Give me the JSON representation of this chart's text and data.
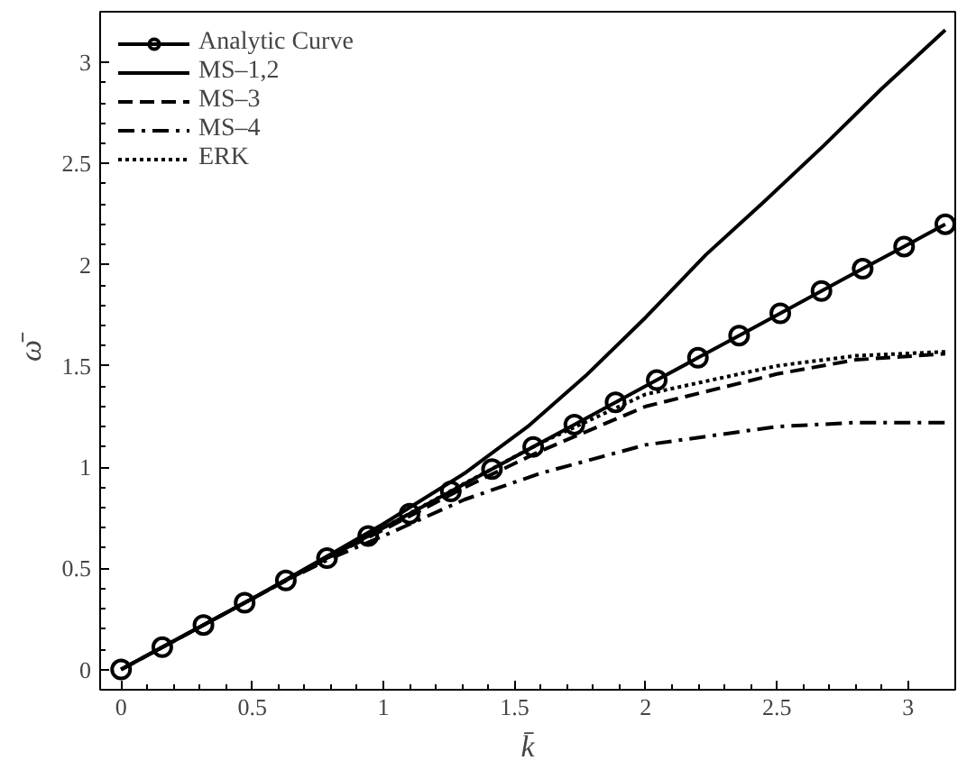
{
  "chart_data": {
    "type": "line",
    "xlabel": "k̄",
    "ylabel": "ω̄",
    "xlim": [
      -0.08,
      3.18
    ],
    "ylim": [
      -0.1,
      3.25
    ],
    "xticks": [
      0,
      0.5,
      1,
      1.5,
      2,
      2.5,
      3
    ],
    "yticks": [
      0,
      0.5,
      1,
      1.5,
      2,
      2.5,
      3
    ],
    "grid": false,
    "legend": "top left",
    "series": [
      {
        "name": "Analytic Curve",
        "color": "#000000",
        "marker": "circle",
        "line_style": "solid",
        "x": [
          0,
          0.157,
          0.314,
          0.471,
          0.628,
          0.785,
          0.942,
          1.1,
          1.257,
          1.414,
          1.571,
          1.728,
          1.885,
          2.042,
          2.199,
          2.356,
          2.513,
          2.67,
          2.827,
          2.985,
          3.142
        ],
        "values": [
          0,
          0.11,
          0.22,
          0.33,
          0.44,
          0.55,
          0.66,
          0.77,
          0.88,
          0.99,
          1.1,
          1.21,
          1.32,
          1.43,
          1.54,
          1.65,
          1.76,
          1.87,
          1.98,
          2.09,
          2.2
        ]
      },
      {
        "name": "MS–1,2",
        "color": "#000000",
        "marker": "none",
        "line_style": "solid",
        "x": [
          0,
          0.5,
          0.8,
          1.0,
          1.31,
          1.55,
          1.77,
          2.0,
          2.23,
          2.45,
          2.68,
          2.9,
          3.142
        ],
        "values": [
          0,
          0.35,
          0.57,
          0.72,
          0.97,
          1.2,
          1.45,
          1.74,
          2.05,
          2.31,
          2.59,
          2.87,
          3.16
        ]
      },
      {
        "name": "MS–3",
        "color": "#000000",
        "marker": "none",
        "line_style": "dashed",
        "x": [
          0,
          0.5,
          0.8,
          1.0,
          1.31,
          1.6,
          2.0,
          2.5,
          2.8,
          3.142
        ],
        "values": [
          0,
          0.35,
          0.56,
          0.69,
          0.9,
          1.08,
          1.3,
          1.46,
          1.53,
          1.56
        ]
      },
      {
        "name": "MS–4",
        "color": "#000000",
        "marker": "none",
        "line_style": "dashdot",
        "x": [
          0,
          0.6,
          0.8,
          1.0,
          1.31,
          1.6,
          2.0,
          2.5,
          2.8,
          3.142
        ],
        "values": [
          0,
          0.42,
          0.55,
          0.66,
          0.84,
          0.97,
          1.11,
          1.2,
          1.22,
          1.22
        ]
      },
      {
        "name": "ERK",
        "color": "#000000",
        "marker": "none",
        "line_style": "dotted",
        "x": [
          0.5,
          0.8,
          1.0,
          1.31,
          1.6,
          2.0,
          2.5,
          2.8,
          3.142
        ],
        "values": [
          0.35,
          0.56,
          0.7,
          0.92,
          1.12,
          1.36,
          1.5,
          1.55,
          1.57
        ]
      }
    ]
  }
}
